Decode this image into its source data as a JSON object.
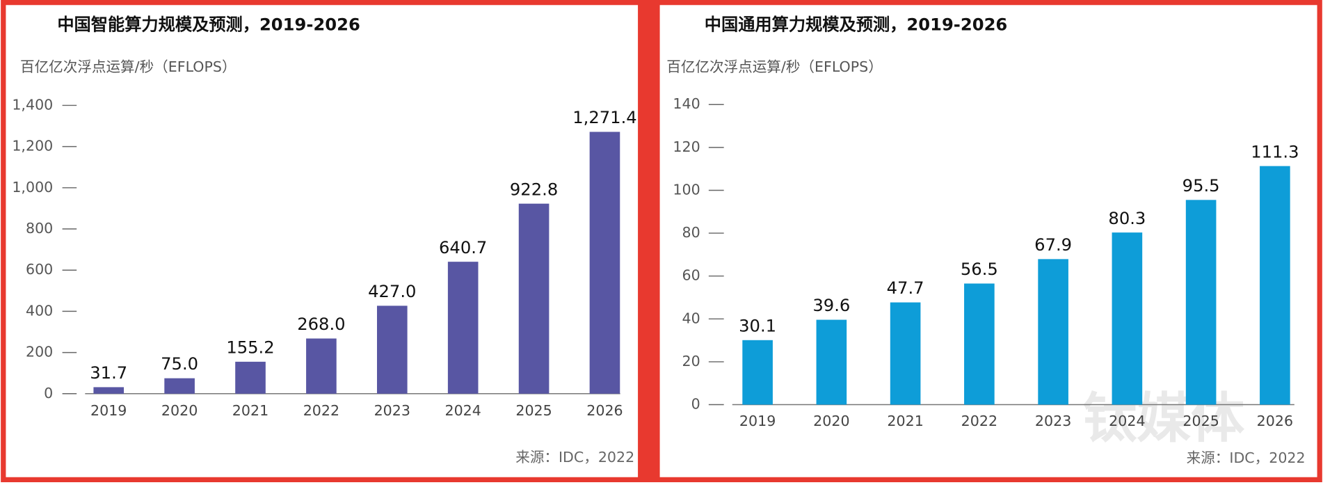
{
  "chart_data": [
    {
      "type": "bar",
      "title": "中国智能算力规模及预测，2019-2026",
      "y_label": "百亿亿次浮点运算/秒（EFLOPS）",
      "source": "来源：IDC，2022",
      "categories": [
        "2019",
        "2020",
        "2021",
        "2022",
        "2023",
        "2024",
        "2025",
        "2026"
      ],
      "values": [
        31.7,
        75,
        155.2,
        268,
        427,
        640.7,
        922.8,
        1271.4
      ],
      "value_labels": [
        "31.7",
        "75.0",
        "155.2",
        "268.0",
        "427.0",
        "640.7",
        "922.8",
        "1,271.4"
      ],
      "color": "#5856a3",
      "ylim": [
        0,
        1400
      ],
      "yticks": [
        0,
        200,
        400,
        600,
        800,
        {
          "value": 1000,
          "label": "1,000"
        },
        {
          "value": 1200,
          "label": "1,200"
        },
        {
          "value": 1400,
          "label": "1,400"
        }
      ]
    },
    {
      "type": "bar",
      "title": "中国通用算力规模及预测，2019-2026",
      "y_label": "百亿亿次浮点运算/秒（EFLOPS）",
      "source": "来源：IDC，2022",
      "categories": [
        "2019",
        "2020",
        "2021",
        "2022",
        "2023",
        "2024",
        "2025",
        "2026"
      ],
      "values": [
        30.1,
        39.6,
        47.7,
        56.5,
        67.9,
        80.3,
        95.5,
        111.3
      ],
      "color": "#0e9dd8",
      "ylim": [
        0,
        140
      ],
      "yticks": [
        0,
        20,
        40,
        60,
        80,
        100,
        120,
        140
      ],
      "watermark": "钛媒体"
    }
  ]
}
